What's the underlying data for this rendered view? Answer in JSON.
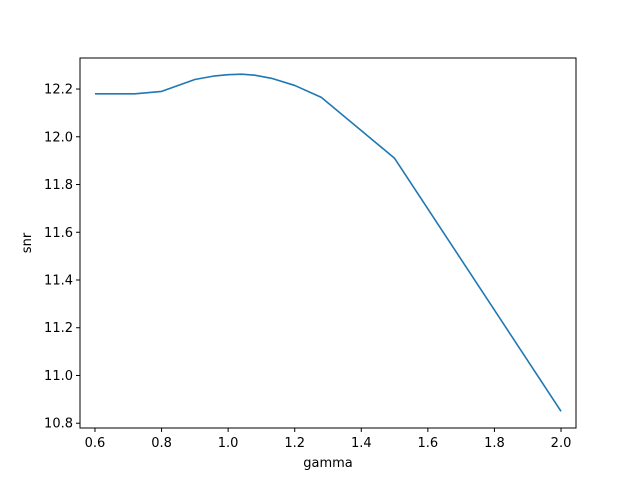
{
  "chart_data": {
    "type": "line",
    "title": "",
    "xlabel": "gamma",
    "ylabel": "snr",
    "xlim": [
      0.555,
      2.045
    ],
    "ylim": [
      10.78,
      12.33
    ],
    "grid": false,
    "x_ticks": [
      "0.6",
      "0.8",
      "1.0",
      "1.2",
      "1.4",
      "1.6",
      "1.8",
      "2.0"
    ],
    "y_ticks": [
      "10.8",
      "11.0",
      "11.2",
      "11.4",
      "11.6",
      "11.8",
      "12.0",
      "12.2"
    ],
    "series": [
      {
        "color": "#1f77b4",
        "x": [
          0.6,
          0.72,
          0.8,
          0.9,
          0.96,
          1.0,
          1.04,
          1.08,
          1.13,
          1.2,
          1.28,
          1.5,
          2.0
        ],
        "y": [
          12.18,
          12.18,
          12.19,
          12.24,
          12.255,
          12.26,
          12.262,
          12.258,
          12.245,
          12.215,
          12.165,
          11.91,
          10.85
        ]
      }
    ]
  }
}
